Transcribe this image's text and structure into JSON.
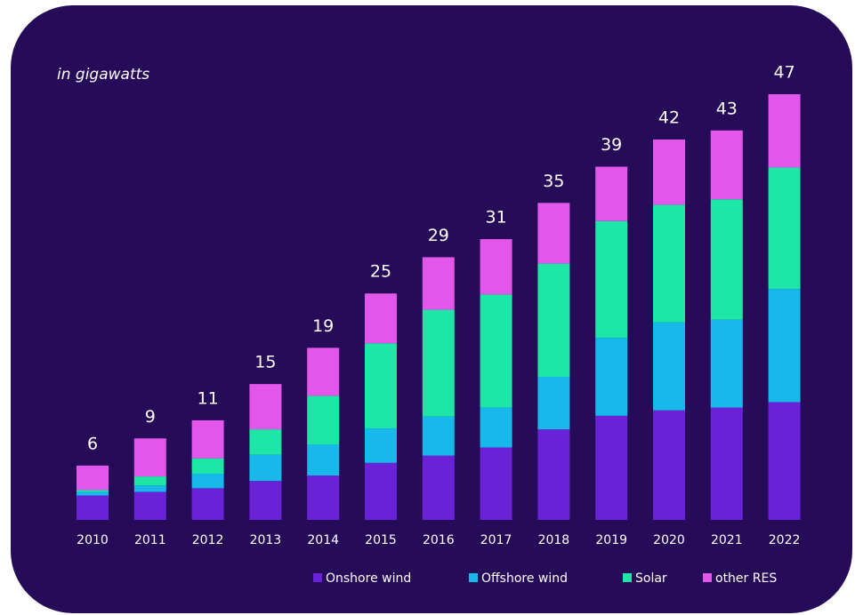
{
  "chart_data": {
    "type": "stacked_bar",
    "subtitle": "in gigawatts",
    "categories": [
      "2010",
      "2011",
      "2012",
      "2013",
      "2014",
      "2015",
      "2016",
      "2017",
      "2018",
      "2019",
      "2020",
      "2021",
      "2022"
    ],
    "series": [
      {
        "name": "Onshore wind",
        "color": "#6a22d6",
        "values": [
          2.7,
          3.1,
          3.5,
          4.3,
          4.9,
          6.3,
          7.1,
          8.0,
          10.0,
          11.5,
          12.1,
          12.4,
          13.0
        ]
      },
      {
        "name": "Offshore wind",
        "color": "#16b9ea",
        "values": [
          0.4,
          0.7,
          1.6,
          2.9,
          3.4,
          3.8,
          4.3,
          4.4,
          5.8,
          8.6,
          9.7,
          9.7,
          12.5
        ]
      },
      {
        "name": "Solar",
        "color": "#1ee6a6",
        "values": [
          0.2,
          1.0,
          1.7,
          2.8,
          5.4,
          9.4,
          11.8,
          12.5,
          12.5,
          12.9,
          13.0,
          13.3,
          13.4
        ]
      },
      {
        "name": "other RES",
        "color": "#e256ea",
        "values": [
          2.7,
          4.2,
          4.2,
          5.0,
          5.3,
          5.5,
          5.8,
          6.1,
          6.7,
          6.0,
          7.2,
          7.6,
          8.1
        ]
      }
    ],
    "totals": [
      6,
      9,
      11,
      15,
      19,
      25,
      29,
      31,
      35,
      39,
      42,
      43,
      47
    ],
    "ylim": [
      0,
      47
    ]
  }
}
